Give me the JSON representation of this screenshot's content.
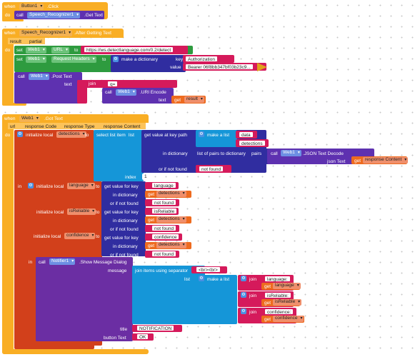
{
  "kw": {
    "when": "when",
    "do": "do",
    "call": "call",
    "set": "set",
    "to": "to",
    "in": "in",
    "join": "join",
    "make_list": "make a list",
    "make_dict": "make a dictionary",
    "key": "key",
    "value": "value",
    "text": "text",
    "get": "get",
    "url": "url",
    "result": "result",
    "partial": "partial",
    "initialize_local": "initialize local",
    "select_list_item": "select list item",
    "list": "list",
    "index": "index",
    "get_value_at_key_path": "get value at key path",
    "in_dictionary": "in dictionary",
    "or_if_not_found": "or if not found",
    "list_pairs": "list of pairs to dictionary",
    "pairs": "pairs",
    "get_value_for_key": "get value for key",
    "message": "message",
    "join_items_sep": "join items using separator",
    "title": "title",
    "button_text": "button Text",
    "json_text": "json Text"
  },
  "block1": {
    "component": "Button1",
    "event": ".Click",
    "call_component": "Speech_Recognizer1",
    "call_method": ".Get Text"
  },
  "block2": {
    "component": "Speech_Recognizer1",
    "event": ".After Getting Text",
    "set1_component": "Web1",
    "set1_prop": "URL",
    "url_value": "https://ws.detectlanguage.com/0.2/detect",
    "set2_component": "Web1",
    "set2_prop": "Request Headers",
    "dict_key": "Authorization",
    "dict_value": "Bearer 06f8bb347bf03b23c9...",
    "post_component": "Web1",
    "post_method": ".Post Text",
    "join_first": "q=",
    "encode_component": "Web1",
    "encode_method": ".URI Encode",
    "get_var": "result"
  },
  "block3": {
    "component": "Web1",
    "event": ".Got Text",
    "params": [
      "url",
      "response Code",
      "response Type",
      "response Content"
    ],
    "var_detections": "detections",
    "path_items": [
      "data",
      "detections"
    ],
    "decode_component": "Web1",
    "decode_method": ".JSON Text Decode",
    "get_response": "response Content",
    "not_found": "not found",
    "index_value": "1",
    "var_language": "language",
    "var_isreliable": "isReliable",
    "var_confidence": "confidence",
    "key_language": "language",
    "key_isreliable": "isReliable",
    "key_confidence": "confidence",
    "get_detections": "detections",
    "notifier_component": "Notifier1",
    "notifier_method": ".Show Message Dialog",
    "separator": "<br><br>",
    "join_labels": [
      "language:",
      "isReliable:",
      "confidence:"
    ],
    "join_vars": [
      "language",
      "isReliable",
      "confidence"
    ],
    "title_value": "NOTIFICATION",
    "button_value": "OK"
  }
}
